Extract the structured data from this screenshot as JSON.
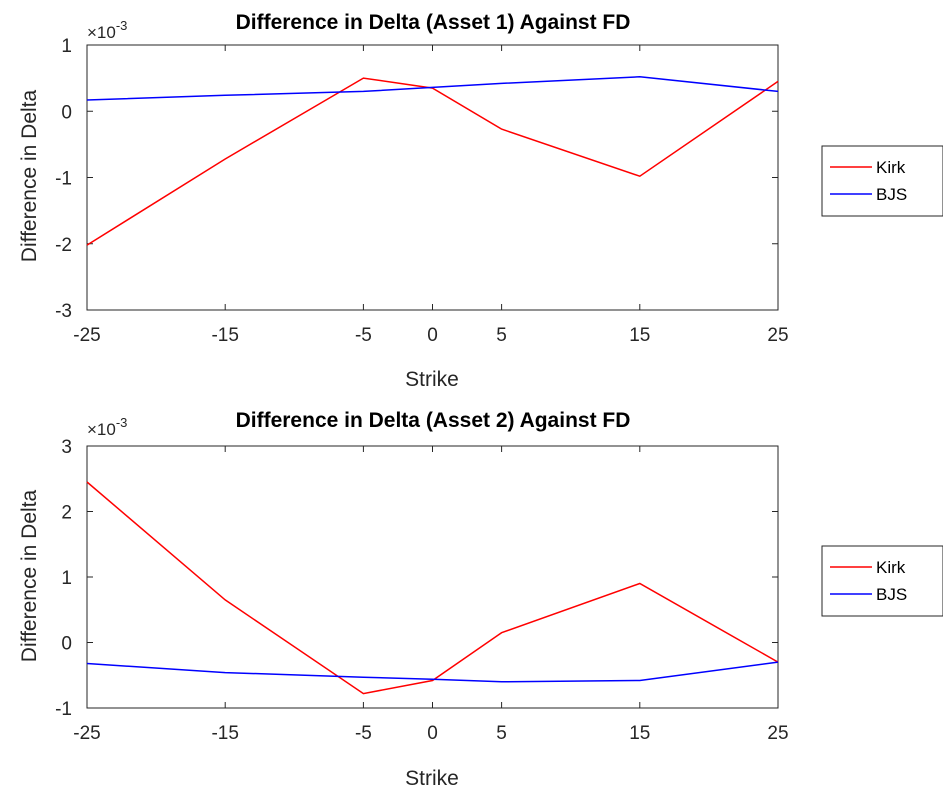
{
  "chart_data": [
    {
      "type": "line",
      "title": "Difference in Delta (Asset 1) Against FD",
      "xlabel": "Strike",
      "ylabel": "Difference in Delta",
      "exponent_label": "×10",
      "exponent_power": "-3",
      "x": [
        -25,
        -15,
        -5,
        0,
        5,
        15,
        25
      ],
      "xlim": [
        -25,
        25
      ],
      "ylim": [
        -0.003,
        0.001
      ],
      "x_ticks": [
        -25,
        -15,
        -5,
        0,
        5,
        15,
        25
      ],
      "x_tick_labels": [
        "-25",
        "-15",
        "-5",
        "0",
        "5",
        "15",
        "25"
      ],
      "y_ticks": [
        -0.003,
        -0.002,
        -0.001,
        0,
        0.001
      ],
      "y_tick_labels": [
        "-3",
        "-2",
        "-1",
        "0",
        "1"
      ],
      "grid": false,
      "legend_position": "outside-right",
      "series": [
        {
          "name": "Kirk",
          "color": "#ff0000",
          "values": [
            -0.00202,
            -0.00072,
            0.0005,
            0.00035,
            -0.00027,
            -0.00098,
            0.00045
          ]
        },
        {
          "name": "BJS",
          "color": "#0000ff",
          "values": [
            0.00017,
            0.00024,
            0.0003,
            0.00036,
            0.00042,
            0.00052,
            0.0003
          ]
        }
      ]
    },
    {
      "type": "line",
      "title": "Difference in Delta (Asset 2) Against FD",
      "xlabel": "Strike",
      "ylabel": "Difference in Delta",
      "exponent_label": "×10",
      "exponent_power": "-3",
      "x": [
        -25,
        -15,
        -5,
        0,
        5,
        15,
        25
      ],
      "xlim": [
        -25,
        25
      ],
      "ylim": [
        -0.001,
        0.003
      ],
      "x_ticks": [
        -25,
        -15,
        -5,
        0,
        5,
        15,
        25
      ],
      "x_tick_labels": [
        "-25",
        "-15",
        "-5",
        "0",
        "5",
        "15",
        "25"
      ],
      "y_ticks": [
        -0.001,
        0,
        0.001,
        0.002,
        0.003
      ],
      "y_tick_labels": [
        "-1",
        "0",
        "1",
        "2",
        "3"
      ],
      "grid": false,
      "legend_position": "outside-right",
      "series": [
        {
          "name": "Kirk",
          "color": "#ff0000",
          "values": [
            0.00245,
            0.00065,
            -0.00078,
            -0.00058,
            0.00015,
            0.0009,
            -0.0003
          ]
        },
        {
          "name": "BJS",
          "color": "#0000ff",
          "values": [
            -0.00032,
            -0.00046,
            -0.00053,
            -0.00056,
            -0.0006,
            -0.00058,
            -0.0003
          ]
        }
      ]
    }
  ]
}
